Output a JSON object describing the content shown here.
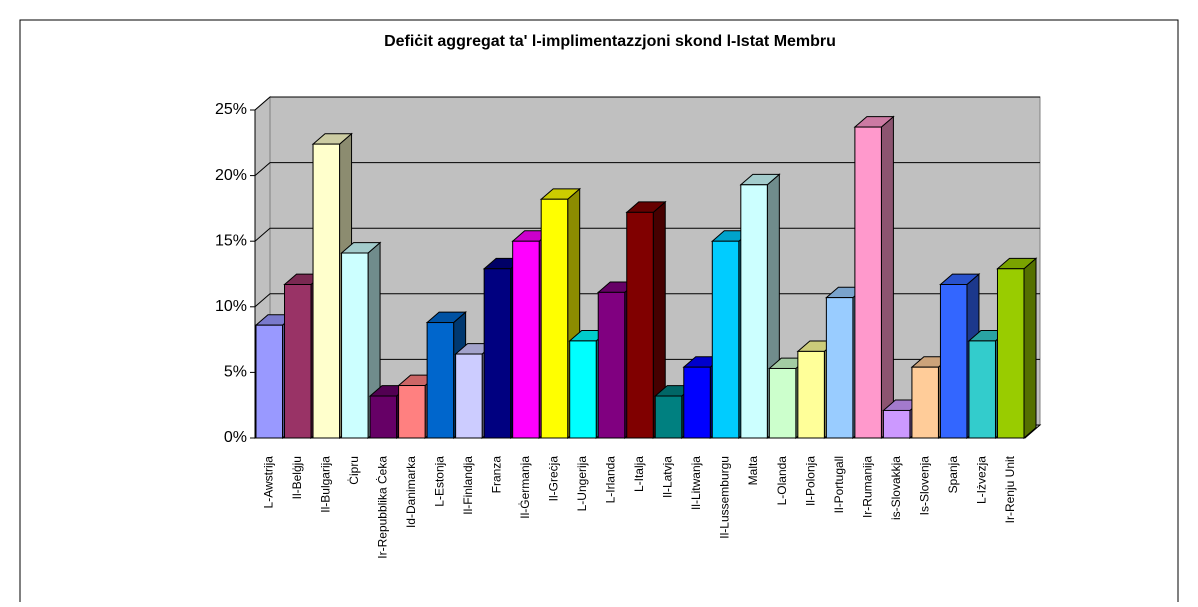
{
  "chart_data": {
    "type": "bar3d",
    "title": "Defiċit aggregat ta' l-implimentazzjoni skond l-Istat Membru",
    "categories": [
      "L-Awstrija",
      "Il-Belġju",
      "Il-Bulgarija",
      "Ċipru",
      "Ir-Repubblika Ċeka",
      "Id-Danimarka",
      "L-Estonja",
      "Il-Finlandja",
      "Franza",
      "Il-Ġermanja",
      "Il-Greċja",
      "L-Ungerija",
      "L-Irlanda",
      "L-Italja",
      "Il-Latvja",
      "Il-Litwanja",
      "Il-Lussemburgu",
      "Malta",
      "L-Olanda",
      "Il-Polonja",
      "Il-Portugall",
      "Ir-Rumanija",
      "is-Slovakkja",
      "Is-Slovenja",
      "Spanja",
      "L-Iżvezja",
      "Ir-Renju Unit"
    ],
    "values": [
      8.6,
      11.7,
      22.4,
      14.1,
      3.2,
      4.0,
      8.8,
      6.4,
      12.9,
      15.0,
      18.2,
      7.4,
      11.1,
      17.2,
      3.2,
      5.4,
      15.0,
      19.3,
      5.3,
      6.6,
      10.7,
      23.7,
      2.1,
      5.4,
      11.7,
      7.4,
      12.9
    ],
    "colors": [
      "#9999ff",
      "#993366",
      "#ffffcc",
      "#ccffff",
      "#660066",
      "#ff8080",
      "#0066cc",
      "#ccccff",
      "#000080",
      "#ff00ff",
      "#ffff00",
      "#00ffff",
      "#800080",
      "#800000",
      "#008080",
      "#0000ff",
      "#00ccff",
      "#ccffff",
      "#ccffcc",
      "#ffff99",
      "#99ccff",
      "#ff99cc",
      "#cc99ff",
      "#ffcc99",
      "#3366ff",
      "#33cccc",
      "#99cc00"
    ],
    "ylim": [
      0,
      25
    ],
    "yticks": [
      {
        "value": 0,
        "label": "0%"
      },
      {
        "value": 5,
        "label": "5%"
      },
      {
        "value": 10,
        "label": "10%"
      },
      {
        "value": 15,
        "label": "15%"
      },
      {
        "value": 20,
        "label": "20%"
      },
      {
        "value": 25,
        "label": "25%"
      }
    ],
    "grid": true
  }
}
